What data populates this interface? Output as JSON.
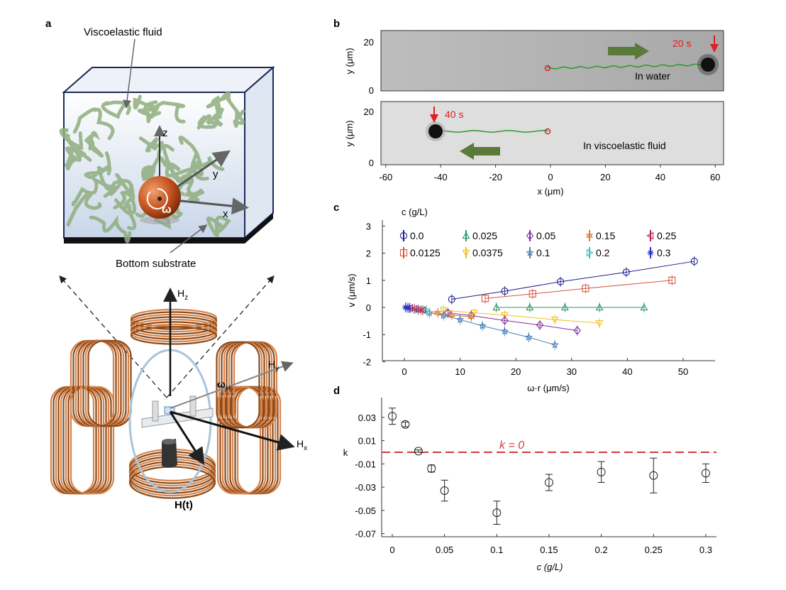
{
  "panels": {
    "a": {
      "label": "a",
      "fluid_label": "Viscoelastic fluid",
      "substrate_label": "Bottom substrate",
      "axis_z": "z",
      "axis_y": "y",
      "axis_x": "x",
      "omega": "ω",
      "hz": "H",
      "hz_sub": "z",
      "hy": "H",
      "hy_sub": "y",
      "hx": "H",
      "hx_sub": "x",
      "omega_h": "ω",
      "omega_h_sub": "H",
      "ht": "H(t)",
      "colors": {
        "coil": "#c8742f",
        "sphere": "#c5521e",
        "fluid_strands": "#8fae7e",
        "box_edge": "#1c2a5a",
        "ring": "#a8c4dc"
      }
    },
    "b": {
      "label": "b",
      "top": {
        "time": "20 s",
        "caption": "In water"
      },
      "bottom": {
        "time": "40 s",
        "caption": "In viscoelastic fluid"
      },
      "ylabel": "y (μm)",
      "xlabel": "x (μm)",
      "xticks": [
        "-60",
        "-40",
        "-20",
        "0",
        "20",
        "40",
        "60"
      ],
      "yticks": [
        "0",
        "20"
      ],
      "colors": {
        "trajectory": "#2a9a2a",
        "marker": "#e02020",
        "arrow": "#5a7a3a"
      }
    }
  },
  "chart_data": [
    {
      "panel": "c",
      "type": "line",
      "legend_title": "c (g/L)",
      "xlabel": "ω·r (μm/s)",
      "ylabel": "v (μm/s)",
      "xlim": [
        -4,
        56
      ],
      "ylim": [
        -2,
        3
      ],
      "xticks": [
        "0",
        "10",
        "20",
        "30",
        "40",
        "50"
      ],
      "yticks": [
        "-2",
        "-1",
        "0",
        "1",
        "2",
        "3"
      ],
      "legend_placement": "top-left",
      "series": [
        {
          "name": "0.0",
          "marker": "circle",
          "color": "#1f1f8f",
          "x": [
            8.5,
            18,
            28,
            39.8,
            52
          ],
          "y": [
            0.3,
            0.6,
            0.95,
            1.3,
            1.7
          ]
        },
        {
          "name": "0.0125",
          "marker": "square",
          "color": "#d9553a",
          "x": [
            14.5,
            23,
            32.5,
            48
          ],
          "y": [
            0.33,
            0.5,
            0.7,
            1.0
          ]
        },
        {
          "name": "0.025",
          "marker": "triangle-up",
          "color": "#2a9a6a",
          "x": [
            16.5,
            22.5,
            28.8,
            35,
            43
          ],
          "y": [
            0,
            0,
            0,
            0,
            0
          ]
        },
        {
          "name": "0.0375",
          "marker": "triangle-down",
          "color": "#f0c020",
          "x": [
            7,
            12.5,
            18,
            27,
            35
          ],
          "y": [
            -0.1,
            -0.2,
            -0.28,
            -0.45,
            -0.58
          ]
        },
        {
          "name": "0.05",
          "marker": "diamond",
          "color": "#8030a0",
          "x": [
            7.8,
            12,
            18,
            24.3,
            31
          ],
          "y": [
            -0.2,
            -0.3,
            -0.48,
            -0.65,
            -0.85
          ]
        },
        {
          "name": "0.1",
          "marker": "star",
          "color": "#4a7fb5",
          "x": [
            4.5,
            7,
            10,
            14,
            18,
            22.3,
            27
          ],
          "y": [
            -0.2,
            -0.3,
            -0.45,
            -0.68,
            -0.88,
            -1.1,
            -1.38
          ]
        },
        {
          "name": "0.15",
          "marker": "star6",
          "color": "#e07a30",
          "x": [
            3,
            6,
            8.5,
            12
          ],
          "y": [
            -0.1,
            -0.2,
            -0.28,
            -0.35
          ]
        },
        {
          "name": "0.2",
          "marker": "triangle-right",
          "color": "#30c0c0",
          "x": [
            1.5,
            2.5,
            4
          ],
          "y": [
            -0.05,
            -0.08,
            -0.1
          ]
        },
        {
          "name": "0.25",
          "marker": "triangle-left",
          "color": "#b0205a",
          "x": [
            1,
            1.8,
            2.5,
            3.3
          ],
          "y": [
            -0.02,
            -0.05,
            -0.08,
            -0.1
          ]
        },
        {
          "name": "0.3",
          "marker": "asterisk",
          "color": "#3030c0",
          "x": [
            0.2,
            0.5,
            0.8
          ],
          "y": [
            0,
            -0.01,
            -0.02
          ]
        }
      ]
    },
    {
      "panel": "d",
      "type": "scatter",
      "xlabel": "c (g/L)",
      "ylabel": "k",
      "xlim": [
        -0.01,
        0.31
      ],
      "ylim": [
        -0.072,
        0.045
      ],
      "xticks": [
        "0",
        "0.05",
        "0.1",
        "0.15",
        "0.2",
        "0.25",
        "0.3"
      ],
      "yticks": [
        "0.03",
        "0.01",
        "-0.01",
        "-0.03",
        "-0.05",
        "-0.07"
      ],
      "reference_line": {
        "y": 0,
        "label": "k = 0",
        "color": "#d03a3a"
      },
      "x": [
        0,
        0.0125,
        0.025,
        0.0375,
        0.05,
        0.1,
        0.15,
        0.2,
        0.25,
        0.3
      ],
      "y": [
        0.031,
        0.024,
        0.001,
        -0.014,
        -0.033,
        -0.052,
        -0.026,
        -0.017,
        -0.02,
        -0.018
      ],
      "yerr": [
        0.007,
        0.002,
        0.001,
        0.003,
        0.009,
        0.01,
        0.007,
        0.009,
        0.015,
        0.008
      ]
    }
  ]
}
